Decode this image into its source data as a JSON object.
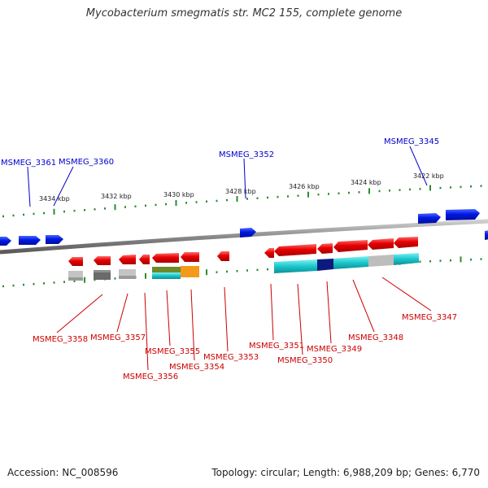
{
  "title": "Mycobacterium smegmatis str. MC2 155, complete genome",
  "footer": {
    "accession": "Accession: NC_008596",
    "summary": "Topology: circular; Length: 6,988,209 bp; Genes: 6,770"
  },
  "colors": {
    "forward_gene": "#0018e6",
    "reverse_gene": "#e60000",
    "forward_label": "#0000cc",
    "reverse_label": "#cc0000",
    "tick": "#2e8b2e",
    "backbone": "#8a8a8a",
    "domain_cyan": "#19c6cc",
    "domain_navy": "#0c1a80",
    "domain_olive": "#6b8a2a",
    "domain_orange": "#f39a1a",
    "domain_gray": "#b8b8b8",
    "domain_darkgray": "#6a6a6a"
  },
  "kbp_ticks": [
    "3434 kbp",
    "3432 kbp",
    "3430 kbp",
    "3428 kbp",
    "3426 kbp",
    "3424 kbp",
    "3422 kbp"
  ],
  "forward_genes": [
    "MSMEG_3361",
    "MSMEG_3360",
    "MSMEG_3352",
    "MSMEG_3345"
  ],
  "reverse_genes": [
    "MSMEG_3358",
    "MSMEG_3357",
    "MSMEG_3356",
    "MSMEG_3355",
    "MSMEG_3354",
    "MSMEG_3353",
    "MSMEG_3351",
    "MSMEG_3350",
    "MSMEG_3349",
    "MSMEG_3348",
    "MSMEG_3347"
  ]
}
